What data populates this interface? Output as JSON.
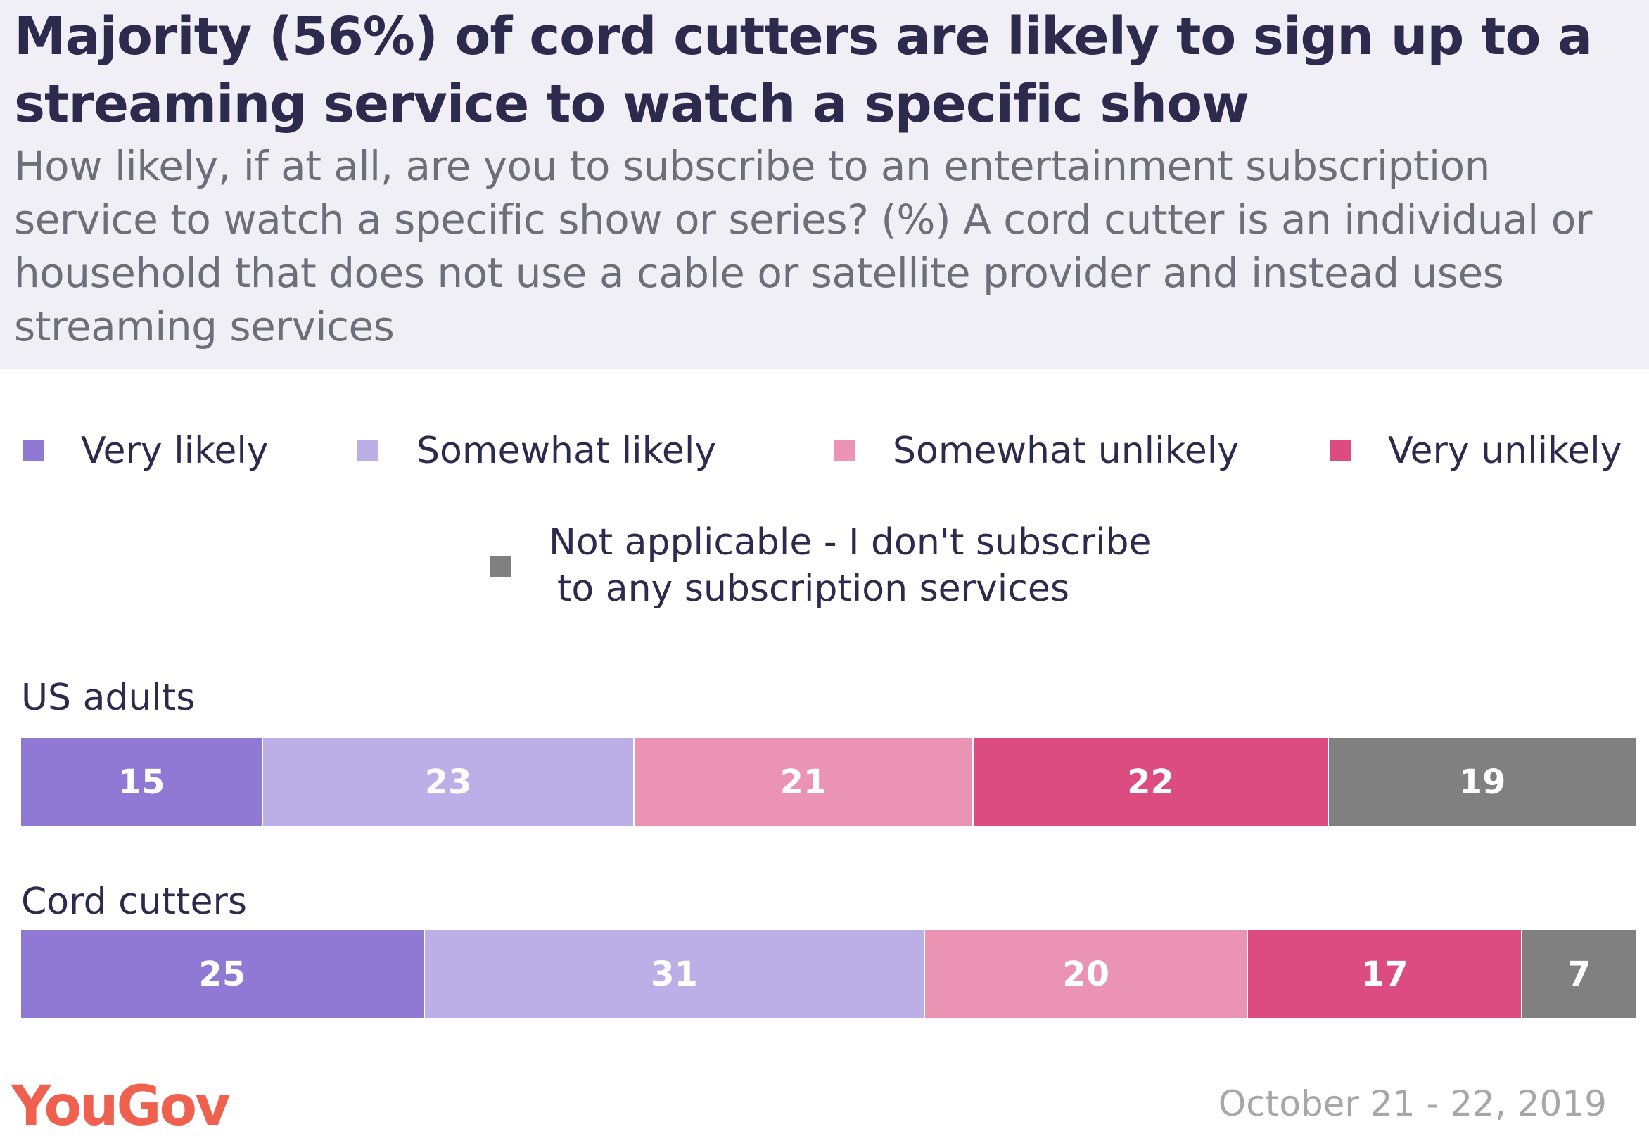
{
  "chart_data": {
    "type": "bar",
    "orientation": "horizontal-stacked",
    "title": "Majority (56%) of cord cutters are likely to sign up to a streaming service to watch a specific show",
    "subtitle": "How likely, if at all, are you to subscribe to an entertainment subscription service to watch a specific show or series? (%) A cord cutter is an individual or household that does not use a cable or satellite provider and instead uses streaming services",
    "categories": [
      "US adults",
      "Cord cutters"
    ],
    "series": [
      {
        "name": "Very likely",
        "color": "#9079d4",
        "values": [
          15,
          25
        ]
      },
      {
        "name": "Somewhat likely",
        "color": "#bcaee6",
        "values": [
          23,
          31
        ]
      },
      {
        "name": "Somewhat unlikely",
        "color": "#ea93b2",
        "values": [
          21,
          20
        ]
      },
      {
        "name": "Very unlikely",
        "color": "#dc4c81",
        "values": [
          22,
          17
        ]
      },
      {
        "name": "Not applicable - I don't subscribe to any subscription services",
        "color": "#808080",
        "values": [
          19,
          7
        ]
      }
    ],
    "legend_placement": "top",
    "na_label_line1": "Not applicable - I don't subscribe",
    "na_label_line2": "to any subscription services"
  },
  "footer": {
    "logo": "YouGov",
    "date": "October 21 - 22, 2019"
  }
}
